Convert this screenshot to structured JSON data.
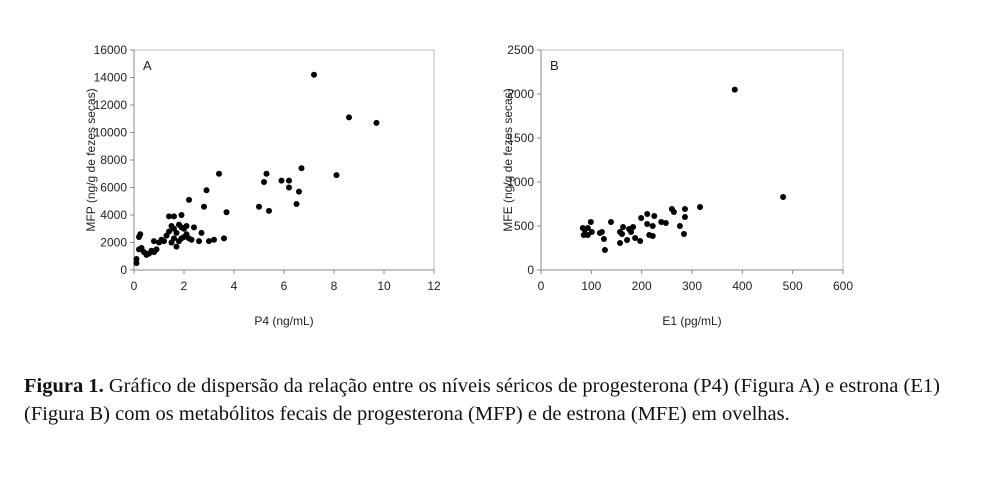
{
  "chart_data": [
    {
      "type": "scatter",
      "panel_label": "A",
      "xlabel": "P4 (ng/mL)",
      "ylabel": "MFP (ng/g de fezes secas)",
      "xlim": [
        0,
        12
      ],
      "ylim": [
        0,
        16000
      ],
      "xticks": [
        0,
        2,
        4,
        6,
        8,
        10,
        12
      ],
      "yticks": [
        0,
        2000,
        4000,
        6000,
        8000,
        10000,
        12000,
        14000,
        16000
      ],
      "grid": false,
      "points": [
        [
          7.2,
          14200
        ],
        [
          8.6,
          11100
        ],
        [
          9.7,
          10700
        ],
        [
          8.1,
          6900
        ],
        [
          6.7,
          7400
        ],
        [
          5.3,
          7000
        ],
        [
          5.2,
          6400
        ],
        [
          5.9,
          6500
        ],
        [
          6.2,
          6500
        ],
        [
          6.2,
          6000
        ],
        [
          6.6,
          5700
        ],
        [
          6.5,
          4800
        ],
        [
          5.0,
          4600
        ],
        [
          5.4,
          4300
        ],
        [
          3.4,
          7000
        ],
        [
          2.9,
          5800
        ],
        [
          2.2,
          5100
        ],
        [
          2.8,
          4600
        ],
        [
          3.7,
          4200
        ],
        [
          3.6,
          2300
        ],
        [
          3.2,
          2200
        ],
        [
          3.0,
          2100
        ],
        [
          2.6,
          2100
        ],
        [
          2.3,
          2200
        ],
        [
          2.7,
          2700
        ],
        [
          2.4,
          3100
        ],
        [
          1.6,
          3900
        ],
        [
          1.9,
          4000
        ],
        [
          1.4,
          3900
        ],
        [
          2.1,
          3200
        ],
        [
          0.1,
          500
        ],
        [
          0.1,
          800
        ],
        [
          0.2,
          1500
        ],
        [
          0.2,
          2400
        ],
        [
          0.25,
          2600
        ],
        [
          0.3,
          1600
        ],
        [
          0.4,
          1300
        ],
        [
          0.6,
          1200
        ],
        [
          0.8,
          1300
        ],
        [
          0.9,
          1500
        ],
        [
          1.0,
          2000
        ],
        [
          0.8,
          2100
        ],
        [
          1.1,
          2200
        ],
        [
          1.3,
          2500
        ],
        [
          1.4,
          2800
        ],
        [
          1.5,
          3200
        ],
        [
          1.6,
          3000
        ],
        [
          1.7,
          2700
        ],
        [
          1.8,
          3300
        ],
        [
          1.9,
          3100
        ],
        [
          2.0,
          3000
        ],
        [
          2.1,
          2600
        ],
        [
          1.9,
          2300
        ],
        [
          1.6,
          2300
        ],
        [
          1.7,
          1700
        ],
        [
          1.5,
          2000
        ],
        [
          2.2,
          2300
        ],
        [
          1.2,
          2100
        ],
        [
          0.5,
          1100
        ],
        [
          0.7,
          1400
        ],
        [
          1.8,
          2100
        ],
        [
          2.0,
          2400
        ]
      ]
    },
    {
      "type": "scatter",
      "panel_label": "B",
      "xlabel": "E1 (pg/mL)",
      "ylabel": "MFE (ng/g de fezes secas)",
      "xlim": [
        0,
        600
      ],
      "ylim": [
        0,
        2500
      ],
      "xticks": [
        0,
        100,
        200,
        300,
        400,
        500,
        600
      ],
      "yticks": [
        0,
        500,
        1000,
        1500,
        2000,
        2500
      ],
      "grid": false,
      "points": [
        [
          385,
          2050
        ],
        [
          481,
          830
        ],
        [
          316,
          716
        ],
        [
          286,
          693
        ],
        [
          286,
          602
        ],
        [
          284,
          409
        ],
        [
          276,
          500
        ],
        [
          260,
          693
        ],
        [
          264,
          659
        ],
        [
          248,
          534
        ],
        [
          239,
          545
        ],
        [
          225,
          614
        ],
        [
          211,
          636
        ],
        [
          199,
          591
        ],
        [
          211,
          523
        ],
        [
          222,
          500
        ],
        [
          222,
          386
        ],
        [
          215,
          398
        ],
        [
          197,
          330
        ],
        [
          187,
          364
        ],
        [
          179,
          432
        ],
        [
          183,
          489
        ],
        [
          175,
          466
        ],
        [
          171,
          341
        ],
        [
          157,
          307
        ],
        [
          163,
          489
        ],
        [
          157,
          432
        ],
        [
          161,
          409
        ],
        [
          139,
          545
        ],
        [
          127,
          227
        ],
        [
          125,
          352
        ],
        [
          121,
          432
        ],
        [
          117,
          420
        ],
        [
          99,
          545
        ],
        [
          93,
          477
        ],
        [
          87,
          455
        ],
        [
          85,
          398
        ],
        [
          93,
          398
        ],
        [
          101,
          432
        ],
        [
          83,
          477
        ]
      ]
    }
  ],
  "caption": {
    "label": "Figura 1.",
    "text": " Gráfico de dispersão da relação entre os níveis séricos de progesterona (P4) (Figura A) e estrona (E1) (Figura B) com os metabólitos fecais de progesterona (MFP) e de estrona (MFE) em ovelhas."
  }
}
